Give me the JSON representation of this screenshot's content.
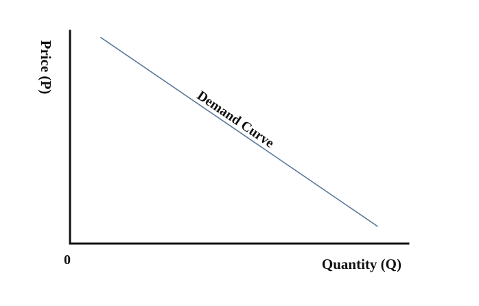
{
  "chart_data": {
    "type": "line",
    "title": "",
    "xlabel": "Quantity (Q)",
    "ylabel": "Price (P)",
    "origin_label": "0",
    "xlim": [
      0,
      10
    ],
    "ylim": [
      0,
      10
    ],
    "grid": false,
    "legend": "none",
    "series": [
      {
        "name": "Demand Curve",
        "color": "#5a7a9a",
        "points": [
          {
            "x": 0.9,
            "y": 9.7
          },
          {
            "x": 9.1,
            "y": 0.8
          }
        ]
      }
    ],
    "annotations": [
      {
        "text": "Demand Curve",
        "series": 0
      }
    ]
  }
}
